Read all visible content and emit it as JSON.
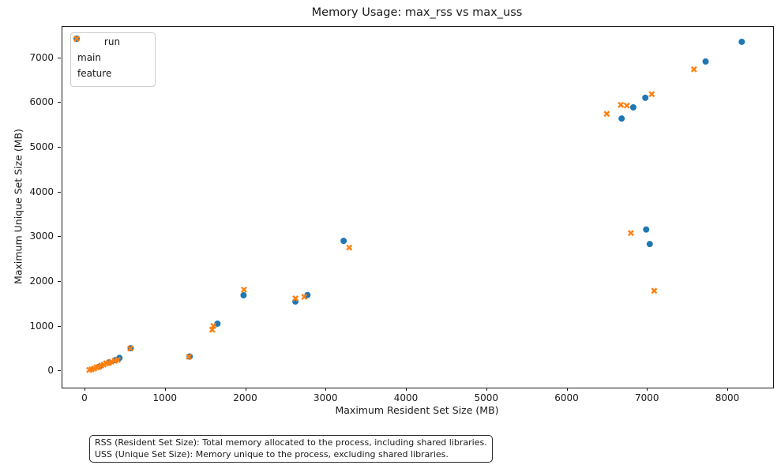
{
  "chart_data": {
    "type": "scatter",
    "title": "Memory Usage: max_rss vs max_uss",
    "xlabel": "Maximum Resident Set Size (MB)",
    "ylabel": "Maximum Unique Set Size (MB)",
    "xlim": [
      -285,
      8560
    ],
    "ylim": [
      -365,
      7700
    ],
    "x_ticks": [
      0,
      1000,
      2000,
      3000,
      4000,
      5000,
      6000,
      7000,
      8000
    ],
    "y_ticks": [
      0,
      1000,
      2000,
      3000,
      4000,
      5000,
      6000,
      7000
    ],
    "grid": false,
    "legend": {
      "title": "run",
      "position": "upper-left",
      "entries": [
        {
          "label": "main",
          "marker": "circle",
          "color": "#1f77b4"
        },
        {
          "label": "feature",
          "marker": "x",
          "color": "#ff7f0e"
        }
      ]
    },
    "series": [
      {
        "name": "main",
        "marker": "circle",
        "color": "#1f77b4",
        "points": [
          [
            180,
            110
          ],
          [
            295,
            200
          ],
          [
            375,
            250
          ],
          [
            425,
            300
          ],
          [
            565,
            515
          ],
          [
            1300,
            330
          ],
          [
            1645,
            1065
          ],
          [
            1970,
            1700
          ],
          [
            2615,
            1560
          ],
          [
            2765,
            1705
          ],
          [
            3215,
            2915
          ],
          [
            6675,
            5650
          ],
          [
            6820,
            5900
          ],
          [
            6970,
            6115
          ],
          [
            6980,
            3170
          ],
          [
            7025,
            2845
          ],
          [
            7720,
            6925
          ],
          [
            8170,
            7365
          ]
        ]
      },
      {
        "name": "feature",
        "marker": "x",
        "color": "#ff7f0e",
        "points": [
          [
            50,
            30
          ],
          [
            80,
            45
          ],
          [
            110,
            60
          ],
          [
            140,
            90
          ],
          [
            170,
            100
          ],
          [
            200,
            130
          ],
          [
            230,
            150
          ],
          [
            260,
            180
          ],
          [
            295,
            185
          ],
          [
            325,
            215
          ],
          [
            365,
            235
          ],
          [
            405,
            255
          ],
          [
            560,
            510
          ],
          [
            1290,
            325
          ],
          [
            1580,
            930
          ],
          [
            1595,
            1015
          ],
          [
            1975,
            1825
          ],
          [
            2615,
            1630
          ],
          [
            2725,
            1665
          ],
          [
            3285,
            2765
          ],
          [
            6490,
            5755
          ],
          [
            6665,
            5955
          ],
          [
            6740,
            5940
          ],
          [
            6790,
            3090
          ],
          [
            7050,
            6195
          ],
          [
            7080,
            1800
          ],
          [
            7575,
            6750
          ]
        ]
      }
    ]
  },
  "footnote": {
    "lines": [
      "RSS (Resident Set Size): Total memory allocated to the process, including shared libraries.",
      "USS (Unique Set Size): Memory unique to the process, excluding shared libraries."
    ]
  }
}
